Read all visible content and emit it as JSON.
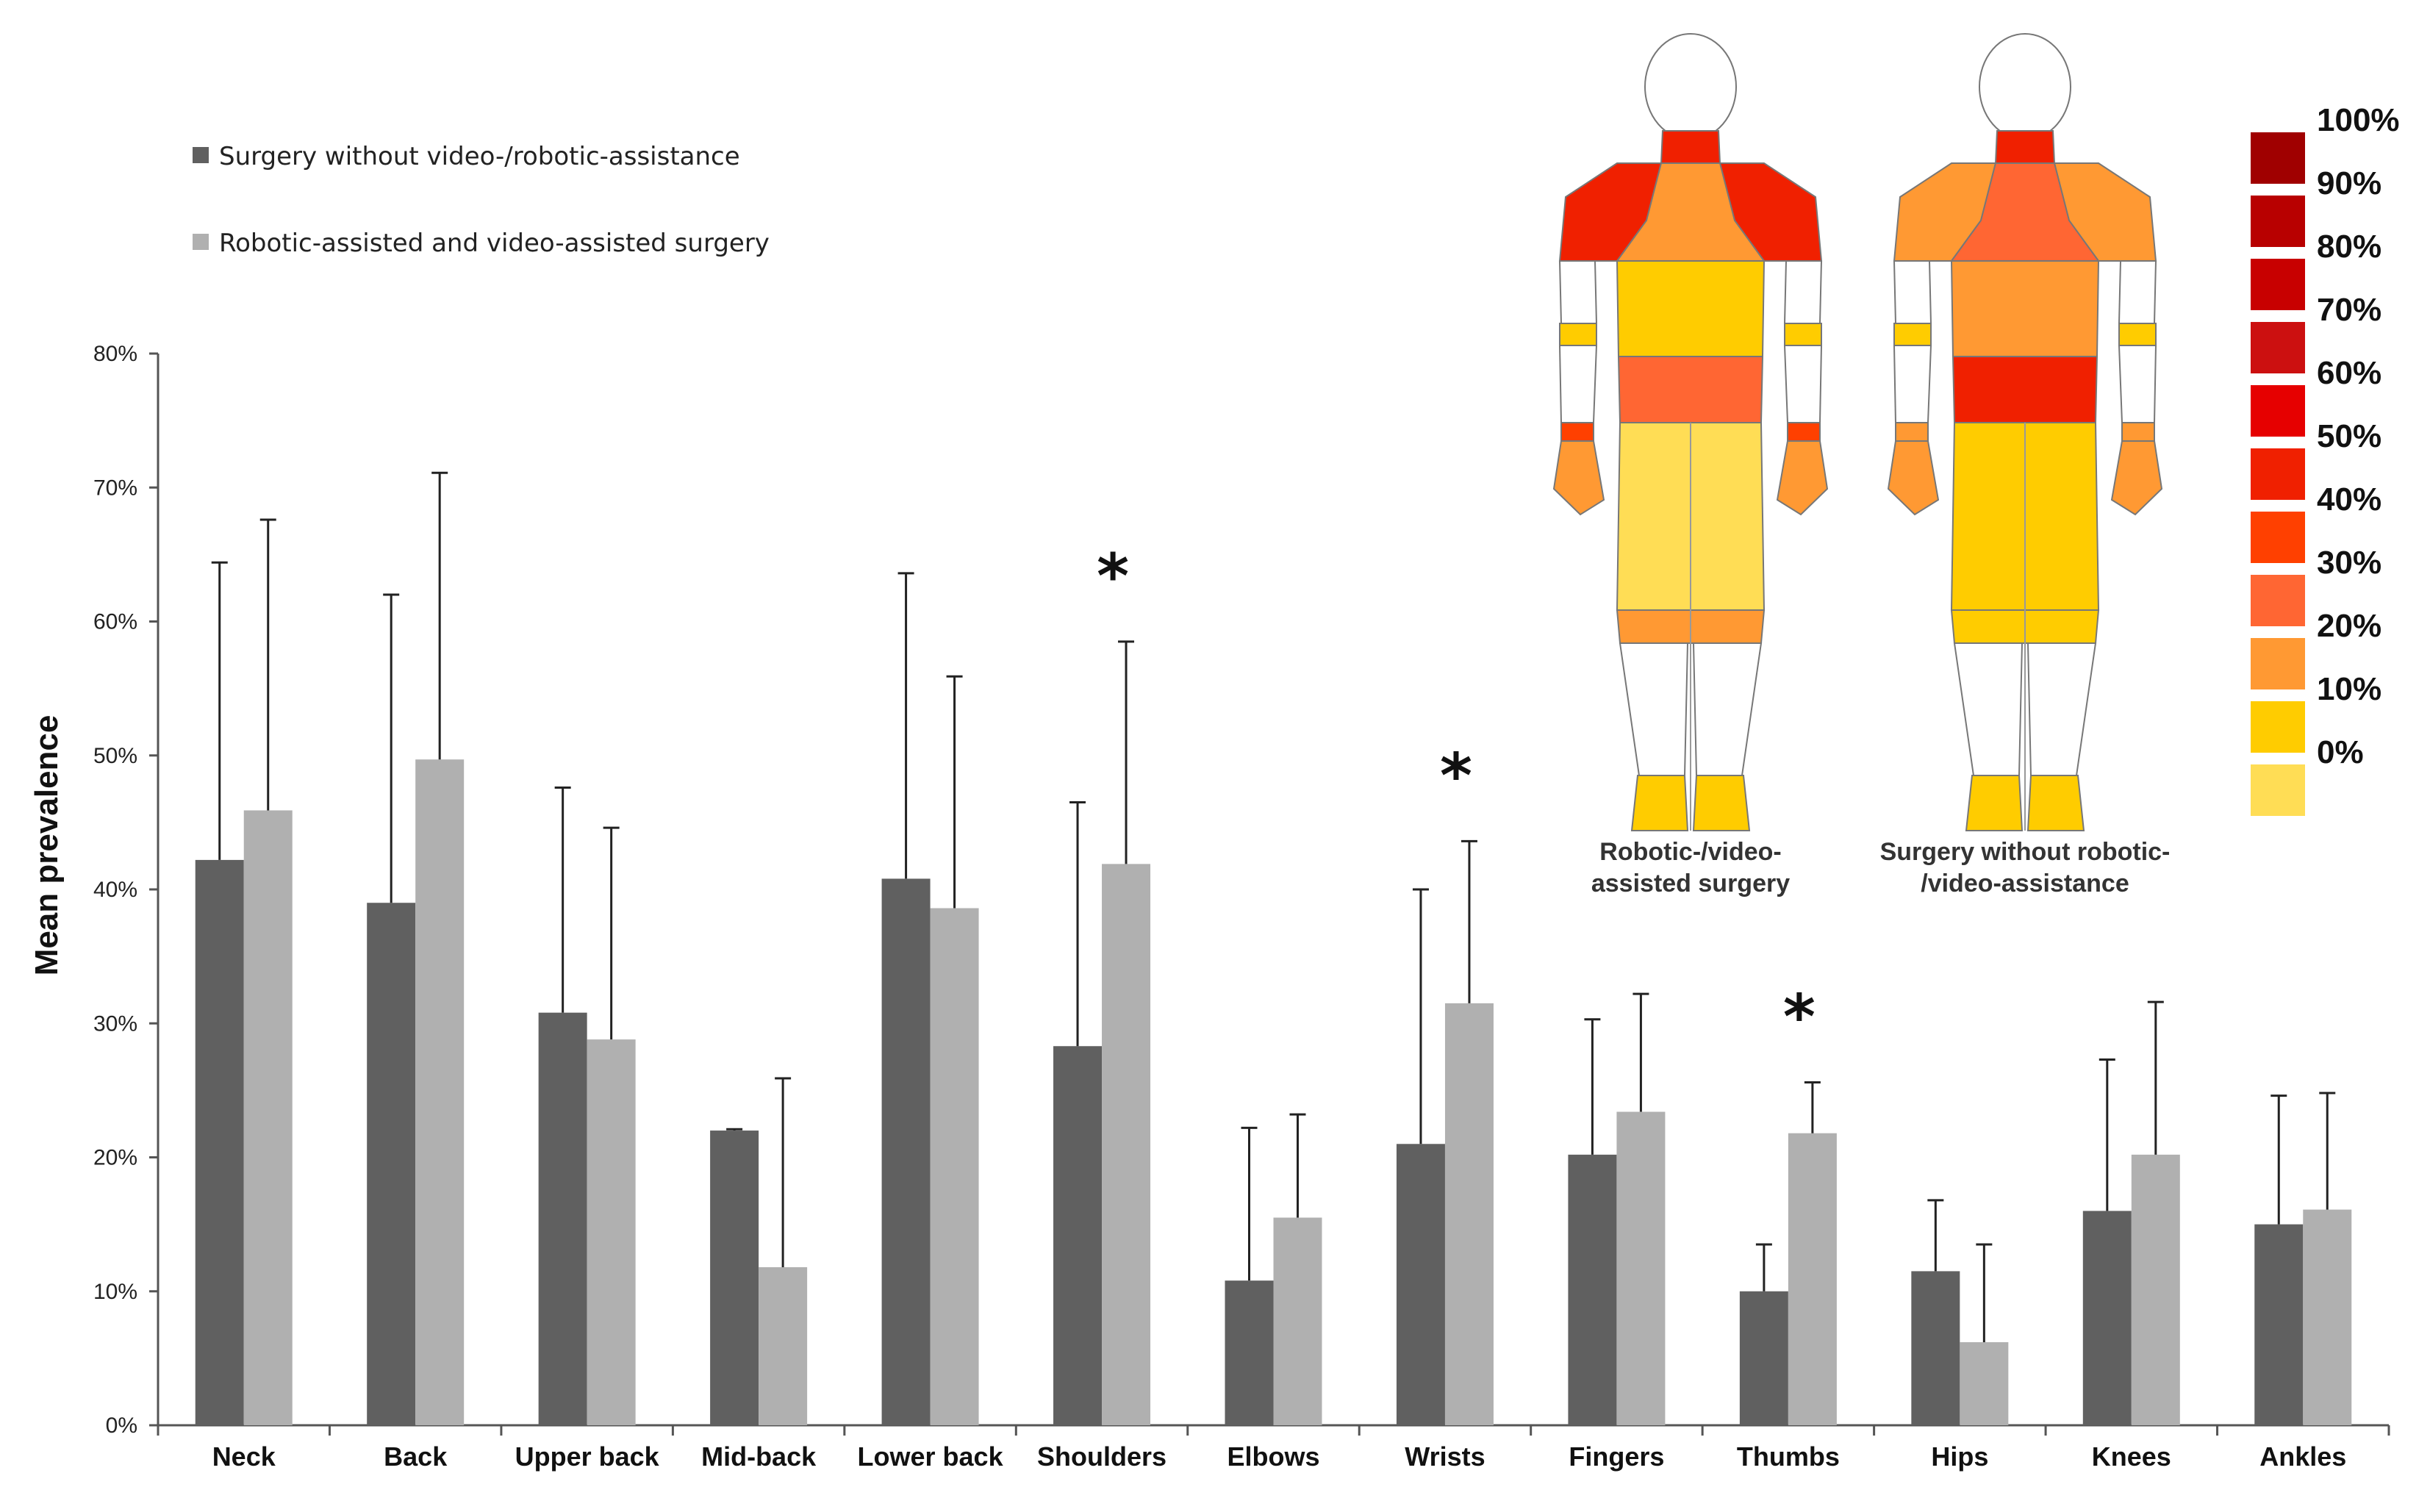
{
  "chart_data": {
    "type": "bar",
    "title": "",
    "xlabel": "",
    "ylabel": "Mean prevalence",
    "ylim": [
      0,
      80
    ],
    "yticks": [
      "0%",
      "10%",
      "20%",
      "30%",
      "40%",
      "50%",
      "60%",
      "70%",
      "80%"
    ],
    "categories": [
      "Neck",
      "Back",
      "Upper back",
      "Mid-back",
      "Lower back",
      "Shoulders",
      "Elbows",
      "Wrists",
      "Fingers",
      "Thumbs",
      "Hips",
      "Knees",
      "Ankles"
    ],
    "series": [
      {
        "name": "Surgery without video-/robotic-assistance",
        "color": "#606060",
        "values": [
          42.2,
          39.0,
          30.8,
          22.0,
          40.8,
          28.3,
          10.8,
          21.0,
          20.2,
          10.0,
          11.5,
          16.0,
          15.0
        ],
        "error_upper": [
          64.4,
          62.0,
          47.6,
          22.1,
          63.6,
          46.5,
          22.2,
          40.0,
          30.3,
          13.5,
          16.8,
          27.3,
          24.6
        ]
      },
      {
        "name": "Robotic-assisted and video-assisted surgery",
        "color": "#b0b0b0",
        "values": [
          45.9,
          49.7,
          28.8,
          11.8,
          38.6,
          41.9,
          15.5,
          31.5,
          23.4,
          21.8,
          6.2,
          20.2,
          16.1
        ],
        "error_upper": [
          67.6,
          71.1,
          44.6,
          25.9,
          55.9,
          58.5,
          23.2,
          43.6,
          32.2,
          25.6,
          13.5,
          31.6,
          24.8
        ]
      }
    ],
    "significance_markers": [
      {
        "category": "Shoulders",
        "symbol": "*"
      },
      {
        "category": "Wrists",
        "symbol": "*"
      },
      {
        "category": "Thumbs",
        "symbol": "*"
      }
    ],
    "legend_position": "top-left",
    "grid": false
  },
  "body_maps": {
    "figures": [
      {
        "caption_line1": "Robotic-/video-",
        "caption_line2": "assisted surgery",
        "region_prevalence": {
          "neck": "50%",
          "upper_back": "20%",
          "shoulders": "50%",
          "mid_back": "10%",
          "lower_back": "30%",
          "upper_arms": "10%",
          "elbows": "0%",
          "wrists": "40%",
          "hands": "20%",
          "hips": "0%",
          "knees": "20%",
          "feet": "10%"
        }
      },
      {
        "caption_line1": "Surgery without robotic-",
        "caption_line2": "/video-assistance",
        "region_prevalence": {
          "neck": "50%",
          "upper_back": "30%",
          "shoulders": "20%",
          "mid_back": "20%",
          "lower_back": "50%",
          "upper_arms": "10%",
          "elbows": "0%",
          "wrists": "20%",
          "hands": "20%",
          "hips": "10%",
          "knees": "10%",
          "feet": "10%"
        }
      }
    ],
    "scale": {
      "labels": [
        "100%",
        "90%",
        "80%",
        "70%",
        "60%",
        "50%",
        "40%",
        "30%",
        "20%",
        "10%",
        "0%"
      ],
      "colors": [
        "#a00000",
        "#b80000",
        "#c80000",
        "#cc1010",
        "#e60000",
        "#f02000",
        "#ff4000",
        "#ff6633",
        "#ff9933",
        "#ffcc00",
        "#ffdd55"
      ]
    }
  }
}
